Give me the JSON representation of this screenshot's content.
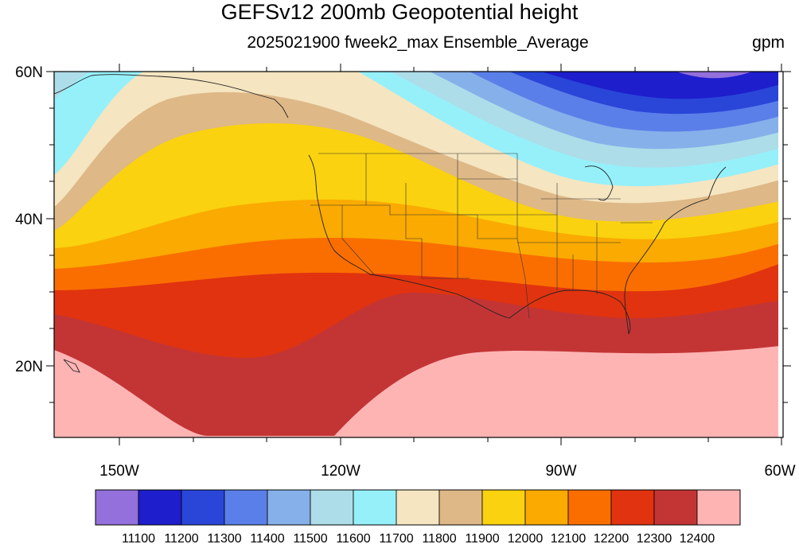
{
  "title": "GEFSv12 200mb Geopotential height",
  "subtitle": "2025021900 fweek2_max Ensemble_Average",
  "units": "gpm",
  "lat_labels": [
    "60N",
    "40N",
    "20N"
  ],
  "lon_labels": [
    "150W",
    "120W",
    "90W",
    "60W"
  ],
  "colorbar": {
    "colors": [
      "#9370DB",
      "#1E1ECC",
      "#2946D8",
      "#5B7FE8",
      "#86B0EA",
      "#ADDDE8",
      "#96F0FA",
      "#F5E5C0",
      "#DEB887",
      "#FAD20F",
      "#FAAA00",
      "#FA6E00",
      "#E1330F",
      "#C33535",
      "#FFB4B4"
    ],
    "labels": [
      "11100",
      "11200",
      "11300",
      "11400",
      "11500",
      "11600",
      "11700",
      "11800",
      "11900",
      "12000",
      "12100",
      "12200",
      "12300",
      "12400"
    ]
  },
  "chart_data": {
    "type": "heatmap",
    "title": "GEFSv12 200mb Geopotential height",
    "subtitle": "2025021900 fweek2_max Ensemble_Average",
    "units": "gpm",
    "xlim": [
      -160,
      -60
    ],
    "ylim": [
      10,
      60
    ],
    "contour_levels": [
      11100,
      11200,
      11300,
      11400,
      11500,
      11600,
      11700,
      11800,
      11900,
      12000,
      12100,
      12200,
      12300,
      12400
    ]
  }
}
